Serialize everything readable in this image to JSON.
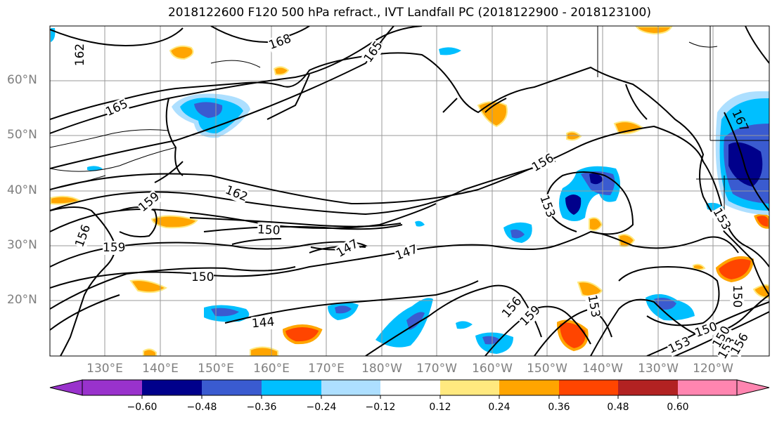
{
  "title": "2018122600 F120 500 hPa refract., IVT Landfall PC (2018122900 - 2018123100)",
  "lat_labels": [
    "60°N",
    "50°N",
    "40°N",
    "30°N",
    "20°N"
  ],
  "lon_labels": [
    "130°E",
    "140°E",
    "150°E",
    "160°E",
    "170°E",
    "180°W",
    "170°W",
    "160°W",
    "150°W",
    "140°W",
    "130°W",
    "120°W"
  ],
  "contour_labels": [
    "162",
    "168",
    "165",
    "165",
    "162",
    "159",
    "156",
    "159",
    "150",
    "150",
    "147",
    "147",
    "156",
    "153",
    "153",
    "150",
    "156",
    "159",
    "153",
    "144",
    "150",
    "153",
    "150",
    "153",
    "156",
    "167"
  ],
  "colorbar": {
    "ticks": [
      "−0.60",
      "−0.48",
      "−0.36",
      "−0.24",
      "−0.12",
      "0.12",
      "0.24",
      "0.36",
      "0.48",
      "0.60"
    ],
    "colors": [
      "#9932CC",
      "#00008B",
      "#3A5BD0",
      "#00BFFF",
      "#ADDFFF",
      "#FFFFFF",
      "#FFE97F",
      "#FFA500",
      "#FF4500",
      "#B22222",
      "#FF85B0"
    ]
  }
}
